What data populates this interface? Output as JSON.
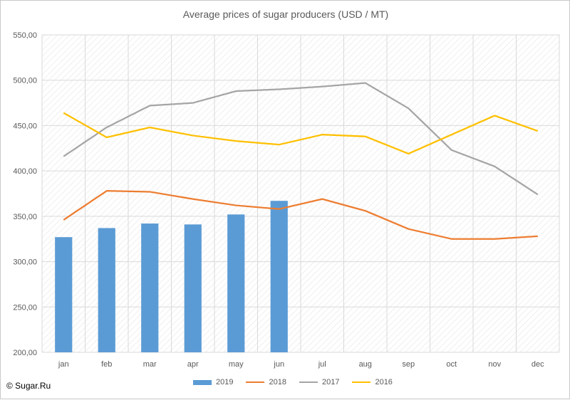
{
  "chart_data": {
    "type": "bar+line",
    "title": "Average prices of sugar producers (USD / MT)",
    "xlabel": "",
    "ylabel": "",
    "categories": [
      "jan",
      "feb",
      "mar",
      "apr",
      "may",
      "jun",
      "jul",
      "aug",
      "sep",
      "oct",
      "nov",
      "dec"
    ],
    "ylim": [
      200,
      550
    ],
    "yticks": [
      "550,00",
      "500,00",
      "450,00",
      "400,00",
      "350,00",
      "300,00",
      "250,00",
      "200,00"
    ],
    "ytick_values": [
      550,
      500,
      450,
      400,
      350,
      300,
      250,
      200
    ],
    "grid": true,
    "legend_position": "bottom",
    "series": [
      {
        "name": "2019",
        "kind": "bar",
        "color": "#5b9bd5",
        "values": [
          327,
          337,
          342,
          341,
          352,
          367,
          null,
          null,
          null,
          null,
          null,
          null
        ]
      },
      {
        "name": "2018",
        "kind": "line",
        "color": "#ed7d31",
        "values": [
          346,
          378,
          377,
          369,
          362,
          358,
          369,
          356,
          336,
          325,
          325,
          328
        ]
      },
      {
        "name": "2017",
        "kind": "line",
        "color": "#a5a5a5",
        "values": [
          416,
          448,
          472,
          475,
          488,
          490,
          493,
          497,
          469,
          423,
          405,
          374
        ]
      },
      {
        "name": "2016",
        "kind": "line",
        "color": "#ffc000",
        "values": [
          464,
          437,
          448,
          439,
          433,
          429,
          440,
          438,
          419,
          440,
          461,
          444
        ]
      }
    ]
  },
  "credit": "© Sugar.Ru"
}
